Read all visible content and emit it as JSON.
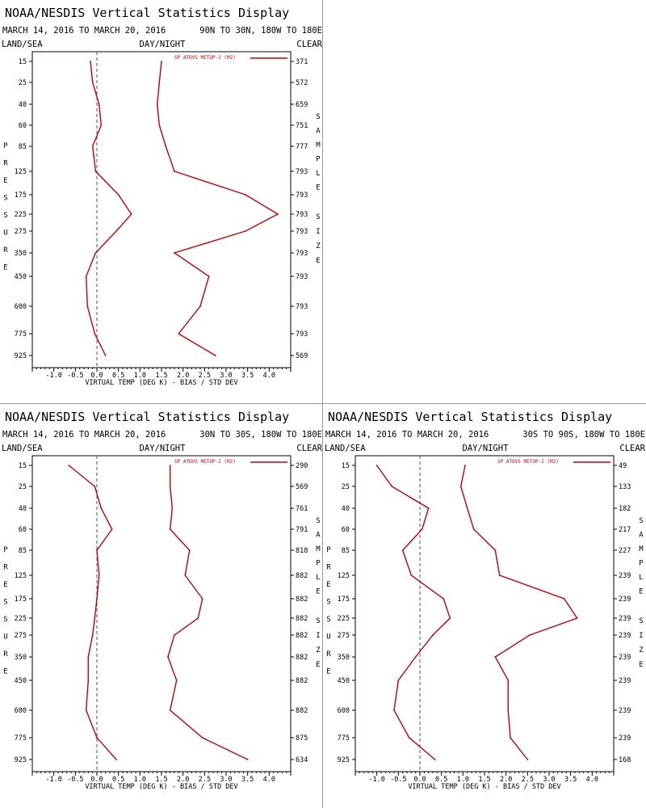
{
  "series_color": "#cc0000",
  "chart_data": [
    {
      "type": "line",
      "title": "NOAA/NESDIS Vertical Statistics Display",
      "dates": "MARCH 14, 2016 TO MARCH 20, 2016",
      "region": "90N TO 30N, 180W TO 180E",
      "label_left": "LAND/SEA",
      "label_mid": "DAY/NIGHT",
      "label_right": "CLEAR",
      "ylabel": "PRESSURE",
      "y2label": "SAMPLE SIZE",
      "xlabel": "VIRTUAL TEMP (DEG K) - BIAS / STD DEV",
      "xlim": [
        -1.5,
        4.5
      ],
      "xticks": [
        "-1.0",
        "-0.5",
        "0.0",
        "0.5",
        "1.0",
        "1.5",
        "2.0",
        "2.5",
        "3.0",
        "3.5",
        "4.0"
      ],
      "levels": [
        "15",
        "25",
        "40",
        "60",
        "85",
        "125",
        "175",
        "225",
        "275",
        "350",
        "450",
        "600",
        "775",
        "925"
      ],
      "legend": "SP ATOVS METOP-2 (M2)",
      "series": [
        {
          "values": [
            -0.15,
            -0.1,
            0.05,
            0.1,
            -0.1,
            -0.03,
            0.5,
            0.8,
            0.45,
            -0.03,
            -0.25,
            -0.22,
            -0.05,
            0.2
          ]
        },
        {
          "values": [
            1.5,
            1.45,
            1.4,
            1.45,
            1.6,
            1.8,
            3.45,
            4.2,
            3.45,
            1.8,
            2.6,
            2.4,
            1.9,
            2.75
          ]
        }
      ],
      "sample_sizes": [
        "371",
        "572",
        "659",
        "751",
        "777",
        "793",
        "793",
        "793",
        "793",
        "793",
        "793",
        "793",
        "793",
        "569"
      ]
    },
    {
      "type": "line",
      "title": "NOAA/NESDIS Vertical Statistics Display",
      "dates": "MARCH 14, 2016 TO MARCH 20, 2016",
      "region": "30N TO 30S, 180W TO 180E",
      "label_left": "LAND/SEA",
      "label_mid": "DAY/NIGHT",
      "label_right": "CLEAR",
      "ylabel": "PRESSURE",
      "y2label": "SAMPLE SIZE",
      "xlabel": "VIRTUAL TEMP (DEG K) - BIAS / STD DEV",
      "xlim": [
        -1.5,
        4.5
      ],
      "xticks": [
        "-1.0",
        "-0.5",
        "0.0",
        "0.5",
        "1.0",
        "1.5",
        "2.0",
        "2.5",
        "3.0",
        "3.5",
        "4.0"
      ],
      "levels": [
        "15",
        "25",
        "40",
        "60",
        "85",
        "125",
        "175",
        "225",
        "275",
        "350",
        "450",
        "600",
        "775",
        "925"
      ],
      "legend": "SP ATOVS METOP-2 (M2)",
      "series": [
        {
          "values": [
            -0.65,
            -0.05,
            0.1,
            0.35,
            0.0,
            0.05,
            0.0,
            -0.05,
            -0.1,
            -0.2,
            -0.2,
            -0.25,
            0.0,
            0.45
          ]
        },
        {
          "values": [
            1.7,
            1.7,
            1.75,
            1.7,
            2.15,
            2.05,
            2.45,
            2.35,
            1.8,
            1.65,
            1.85,
            1.7,
            2.45,
            3.5
          ]
        }
      ],
      "sample_sizes": [
        "290",
        "569",
        "761",
        "791",
        "818",
        "882",
        "882",
        "882",
        "882",
        "882",
        "882",
        "882",
        "875",
        "634"
      ]
    },
    {
      "type": "line",
      "title": "NOAA/NESDIS Vertical Statistics Display",
      "dates": "MARCH 14, 2016 TO MARCH 20, 2016",
      "region": "30S TO 90S, 180W TO 180E",
      "label_left": "LAND/SEA",
      "label_mid": "DAY/NIGHT",
      "label_right": "CLEAR",
      "ylabel": "PRESSURE",
      "y2label": "SAMPLE SIZE",
      "xlabel": "VIRTUAL TEMP (DEG K) - BIAS / STD DEV",
      "xlim": [
        -1.5,
        4.5
      ],
      "xticks": [
        "-1.0",
        "-0.5",
        "0.0",
        "0.5",
        "1.0",
        "1.5",
        "2.0",
        "2.5",
        "3.0",
        "3.5",
        "4.0"
      ],
      "levels": [
        "15",
        "25",
        "40",
        "60",
        "85",
        "125",
        "175",
        "225",
        "275",
        "350",
        "450",
        "600",
        "775",
        "925"
      ],
      "legend": "SP ATOVS METOP-2 (M2)",
      "series": [
        {
          "values": [
            -1.0,
            -0.65,
            0.2,
            0.05,
            -0.4,
            -0.2,
            0.55,
            0.7,
            0.3,
            -0.1,
            -0.5,
            -0.6,
            -0.25,
            0.35
          ]
        },
        {
          "values": [
            1.05,
            0.95,
            1.1,
            1.25,
            1.75,
            1.85,
            3.35,
            3.65,
            2.55,
            1.75,
            2.05,
            2.05,
            2.1,
            2.5
          ]
        }
      ],
      "sample_sizes": [
        "49",
        "133",
        "182",
        "217",
        "227",
        "239",
        "239",
        "239",
        "239",
        "239",
        "239",
        "239",
        "239",
        "168"
      ]
    }
  ]
}
